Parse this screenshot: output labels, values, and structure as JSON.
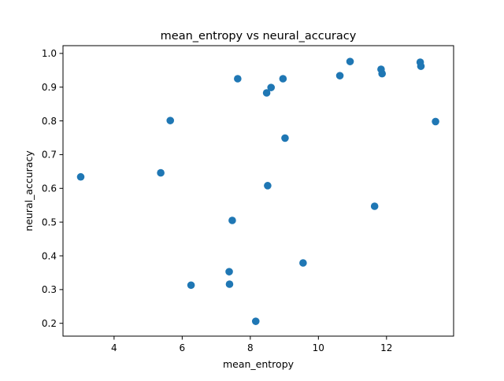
{
  "chart_data": {
    "type": "scatter",
    "title": "mean_entropy vs neural_accuracy",
    "xlabel": "mean_entropy",
    "ylabel": "neural_accuracy",
    "xlim": [
      2.5,
      13.97
    ],
    "ylim": [
      0.162,
      1.023
    ],
    "xticks": [
      4,
      6,
      8,
      10,
      12
    ],
    "yticks": [
      0.2,
      0.3,
      0.4,
      0.5,
      0.6,
      0.7,
      0.8,
      0.9,
      1.0
    ],
    "xtick_labels": [
      "4",
      "6",
      "8",
      "10",
      "12"
    ],
    "ytick_labels": [
      "0.2",
      "0.3",
      "0.4",
      "0.5",
      "0.6",
      "0.7",
      "0.8",
      "0.9",
      "1.0"
    ],
    "grid": false,
    "marker_color": "#1f77b4",
    "points": [
      {
        "x": 3.02,
        "y": 0.634
      },
      {
        "x": 5.37,
        "y": 0.646
      },
      {
        "x": 5.65,
        "y": 0.801
      },
      {
        "x": 6.26,
        "y": 0.313
      },
      {
        "x": 7.38,
        "y": 0.353
      },
      {
        "x": 7.39,
        "y": 0.316
      },
      {
        "x": 7.47,
        "y": 0.505
      },
      {
        "x": 7.63,
        "y": 0.925
      },
      {
        "x": 8.16,
        "y": 0.206
      },
      {
        "x": 8.48,
        "y": 0.883
      },
      {
        "x": 8.51,
        "y": 0.608
      },
      {
        "x": 8.61,
        "y": 0.899
      },
      {
        "x": 8.96,
        "y": 0.925
      },
      {
        "x": 9.02,
        "y": 0.749
      },
      {
        "x": 9.55,
        "y": 0.379
      },
      {
        "x": 10.63,
        "y": 0.934
      },
      {
        "x": 10.93,
        "y": 0.976
      },
      {
        "x": 11.65,
        "y": 0.547
      },
      {
        "x": 11.84,
        "y": 0.953
      },
      {
        "x": 11.87,
        "y": 0.94
      },
      {
        "x": 12.99,
        "y": 0.974
      },
      {
        "x": 13.01,
        "y": 0.962
      },
      {
        "x": 13.44,
        "y": 0.798
      }
    ]
  }
}
